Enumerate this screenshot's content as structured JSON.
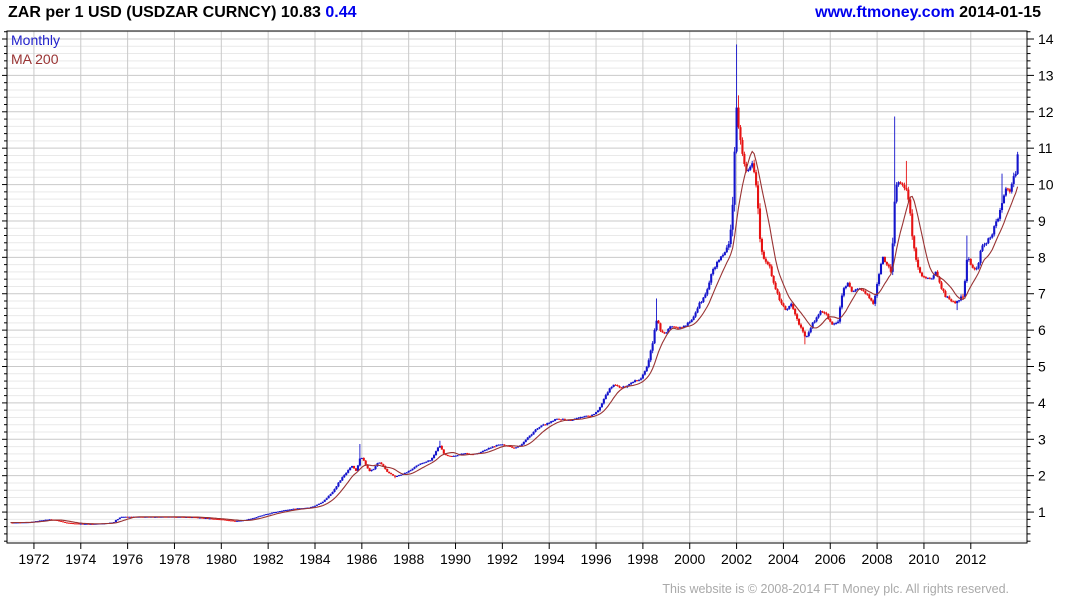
{
  "header": {
    "title": "ZAR per 1 USD (USDZAR CURNCY)",
    "price": "10.83",
    "change": "0.44",
    "site": "www.ftmoney.com",
    "date": "2014-01-15"
  },
  "legend": {
    "monthly": "Monthly",
    "ma": "MA 200"
  },
  "footer": {
    "copyright": "This website is © 2008-2014 FT Money plc. All rights reserved."
  },
  "colors": {
    "up_bar": "#1414cc",
    "down_bar": "#e61212",
    "ma_line": "#993333",
    "legend_monthly": "#2222cc",
    "legend_ma": "#993333",
    "accent_blue": "#0000ee",
    "grid_major": "#c9c9c9",
    "grid_minor": "#e9e9e9",
    "axis": "#000000",
    "tick_label": "#000000",
    "footer_gray": "#a9a9a9"
  },
  "chart_data": {
    "type": "candlestick",
    "title": "ZAR per 1 USD (USDZAR CURNCY)",
    "ylabel": "ZAR per 1 USD",
    "last_price": 10.83,
    "change": 0.44,
    "frequency": "Monthly",
    "x_axis": {
      "ticks": [
        1972,
        1974,
        1976,
        1978,
        1980,
        1982,
        1984,
        1986,
        1988,
        1990,
        1992,
        1994,
        1996,
        1998,
        2000,
        2002,
        2004,
        2006,
        2008,
        2010,
        2012
      ],
      "range": [
        1970.85,
        2014.4
      ]
    },
    "y_axis": {
      "ticks": [
        1,
        2,
        3,
        4,
        5,
        6,
        7,
        8,
        9,
        10,
        11,
        12,
        13,
        14
      ],
      "range": [
        0.15,
        14.22
      ],
      "minor_step": 0.2
    },
    "series": [
      {
        "name": "Monthly",
        "type": "monthly-bars",
        "anchors": [
          [
            1971.0,
            0.71
          ],
          [
            1971.4,
            0.715
          ],
          [
            1971.8,
            0.72
          ],
          [
            1972.1,
            0.75
          ],
          [
            1972.4,
            0.78
          ],
          [
            1972.7,
            0.8
          ],
          [
            1973.0,
            0.77
          ],
          [
            1973.3,
            0.72
          ],
          [
            1973.6,
            0.695
          ],
          [
            1974.0,
            0.68
          ],
          [
            1974.5,
            0.675
          ],
          [
            1975.0,
            0.69
          ],
          [
            1975.4,
            0.72
          ],
          [
            1975.7,
            0.87
          ],
          [
            1976.2,
            0.87
          ],
          [
            1977.0,
            0.87
          ],
          [
            1978.0,
            0.87
          ],
          [
            1978.8,
            0.86
          ],
          [
            1979.4,
            0.83
          ],
          [
            1980.0,
            0.8
          ],
          [
            1980.6,
            0.755
          ],
          [
            1981.0,
            0.78
          ],
          [
            1981.4,
            0.84
          ],
          [
            1981.8,
            0.92
          ],
          [
            1982.1,
            0.97
          ],
          [
            1982.5,
            1.03
          ],
          [
            1982.9,
            1.07
          ],
          [
            1983.2,
            1.1
          ],
          [
            1983.5,
            1.11
          ],
          [
            1983.8,
            1.13
          ],
          [
            1984.1,
            1.2
          ],
          [
            1984.4,
            1.32
          ],
          [
            1984.7,
            1.52
          ],
          [
            1985.0,
            1.8
          ],
          [
            1985.2,
            1.98
          ],
          [
            1985.45,
            2.18
          ],
          [
            1985.6,
            2.28
          ],
          [
            1985.75,
            2.12
          ],
          [
            1985.95,
            2.52
          ],
          [
            1986.1,
            2.42
          ],
          [
            1986.3,
            2.12
          ],
          [
            1986.5,
            2.18
          ],
          [
            1986.7,
            2.38
          ],
          [
            1986.9,
            2.28
          ],
          [
            1987.1,
            2.08
          ],
          [
            1987.4,
            1.98
          ],
          [
            1987.7,
            2.03
          ],
          [
            1988.0,
            2.12
          ],
          [
            1988.3,
            2.25
          ],
          [
            1988.6,
            2.36
          ],
          [
            1988.9,
            2.42
          ],
          [
            1989.1,
            2.58
          ],
          [
            1989.3,
            2.85
          ],
          [
            1989.5,
            2.6
          ],
          [
            1989.8,
            2.53
          ],
          [
            1990.1,
            2.57
          ],
          [
            1990.4,
            2.62
          ],
          [
            1990.7,
            2.59
          ],
          [
            1991.0,
            2.62
          ],
          [
            1991.3,
            2.72
          ],
          [
            1991.6,
            2.8
          ],
          [
            1991.9,
            2.86
          ],
          [
            1992.2,
            2.83
          ],
          [
            1992.5,
            2.76
          ],
          [
            1992.8,
            2.85
          ],
          [
            1993.1,
            3.05
          ],
          [
            1993.4,
            3.25
          ],
          [
            1993.7,
            3.38
          ],
          [
            1994.0,
            3.45
          ],
          [
            1994.3,
            3.56
          ],
          [
            1994.6,
            3.55
          ],
          [
            1994.9,
            3.52
          ],
          [
            1995.2,
            3.58
          ],
          [
            1995.5,
            3.64
          ],
          [
            1995.8,
            3.65
          ],
          [
            1996.1,
            3.78
          ],
          [
            1996.35,
            4.15
          ],
          [
            1996.6,
            4.42
          ],
          [
            1996.8,
            4.52
          ],
          [
            1997.0,
            4.42
          ],
          [
            1997.3,
            4.45
          ],
          [
            1997.6,
            4.58
          ],
          [
            1997.9,
            4.68
          ],
          [
            1998.2,
            5.0
          ],
          [
            1998.45,
            5.8
          ],
          [
            1998.6,
            6.3
          ],
          [
            1998.75,
            6.0
          ],
          [
            1998.95,
            5.88
          ],
          [
            1999.2,
            6.12
          ],
          [
            1999.5,
            6.08
          ],
          [
            1999.8,
            6.1
          ],
          [
            2000.1,
            6.3
          ],
          [
            2000.4,
            6.7
          ],
          [
            2000.7,
            7.0
          ],
          [
            2000.95,
            7.58
          ],
          [
            2001.2,
            7.9
          ],
          [
            2001.5,
            8.1
          ],
          [
            2001.7,
            8.4
          ],
          [
            2001.85,
            9.4
          ],
          [
            2001.98,
            12.1
          ],
          [
            2002.1,
            11.45
          ],
          [
            2002.25,
            10.9
          ],
          [
            2002.4,
            10.35
          ],
          [
            2002.55,
            10.45
          ],
          [
            2002.7,
            10.6
          ],
          [
            2002.85,
            9.9
          ],
          [
            2003.0,
            8.6
          ],
          [
            2003.15,
            7.95
          ],
          [
            2003.35,
            7.85
          ],
          [
            2003.55,
            7.4
          ],
          [
            2003.75,
            7.0
          ],
          [
            2003.95,
            6.65
          ],
          [
            2004.15,
            6.55
          ],
          [
            2004.35,
            6.75
          ],
          [
            2004.55,
            6.3
          ],
          [
            2004.75,
            6.1
          ],
          [
            2004.95,
            5.75
          ],
          [
            2005.15,
            6.05
          ],
          [
            2005.4,
            6.35
          ],
          [
            2005.6,
            6.55
          ],
          [
            2005.85,
            6.4
          ],
          [
            2006.1,
            6.12
          ],
          [
            2006.35,
            6.3
          ],
          [
            2006.55,
            7.1
          ],
          [
            2006.75,
            7.3
          ],
          [
            2006.95,
            7.05
          ],
          [
            2007.2,
            7.15
          ],
          [
            2007.45,
            7.05
          ],
          [
            2007.65,
            6.9
          ],
          [
            2007.85,
            6.7
          ],
          [
            2008.05,
            7.45
          ],
          [
            2008.25,
            8.0
          ],
          [
            2008.45,
            7.75
          ],
          [
            2008.6,
            7.7
          ],
          [
            2008.78,
            9.9
          ],
          [
            2008.92,
            10.05
          ],
          [
            2009.1,
            9.95
          ],
          [
            2009.25,
            9.9
          ],
          [
            2009.4,
            9.3
          ],
          [
            2009.55,
            8.3
          ],
          [
            2009.7,
            7.8
          ],
          [
            2009.9,
            7.5
          ],
          [
            2010.1,
            7.45
          ],
          [
            2010.3,
            7.38
          ],
          [
            2010.5,
            7.58
          ],
          [
            2010.7,
            7.25
          ],
          [
            2010.9,
            6.95
          ],
          [
            2011.1,
            6.85
          ],
          [
            2011.3,
            6.75
          ],
          [
            2011.5,
            6.8
          ],
          [
            2011.7,
            7.0
          ],
          [
            2011.85,
            8.05
          ],
          [
            2012.0,
            7.8
          ],
          [
            2012.15,
            7.65
          ],
          [
            2012.3,
            7.75
          ],
          [
            2012.45,
            8.25
          ],
          [
            2012.6,
            8.35
          ],
          [
            2012.75,
            8.5
          ],
          [
            2012.9,
            8.62
          ],
          [
            2013.05,
            8.95
          ],
          [
            2013.2,
            9.15
          ],
          [
            2013.35,
            9.6
          ],
          [
            2013.5,
            9.92
          ],
          [
            2013.65,
            9.78
          ],
          [
            2013.8,
            10.08
          ],
          [
            2013.95,
            10.4
          ],
          [
            2014.0,
            10.83
          ]
        ],
        "spikes_high": [
          [
            1985.95,
            2.87
          ],
          [
            1989.3,
            2.96
          ],
          [
            1998.6,
            6.87
          ],
          [
            2001.98,
            13.85
          ],
          [
            2002.1,
            12.45
          ],
          [
            2008.78,
            11.87
          ],
          [
            2009.25,
            10.65
          ],
          [
            2011.85,
            8.6
          ],
          [
            2013.35,
            10.3
          ],
          [
            2014.0,
            10.9
          ]
        ],
        "spikes_low": [
          [
            1987.4,
            1.93
          ],
          [
            2004.95,
            5.61
          ],
          [
            2011.4,
            6.55
          ]
        ]
      },
      {
        "name": "MA 200",
        "type": "moving-average",
        "window_days": 200
      }
    ]
  }
}
